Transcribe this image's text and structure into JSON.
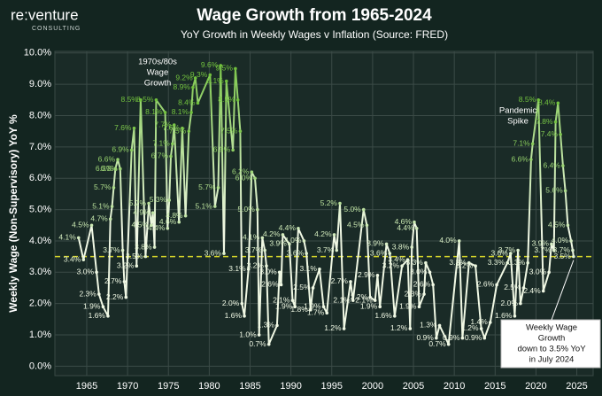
{
  "logo": {
    "name": "re:venture",
    "tagline": "CONSULTING"
  },
  "chart_data": {
    "type": "line",
    "title": "Wage Growth from 1965-2024",
    "subtitle": "YoY Growth in Weekly Wages v Inflation (Source: FRED)",
    "y_label": "Weekly Wage (Non-Supervisory) YoY %",
    "annotations": [
      [
        "1970s/80s",
        "Wage",
        "Growth"
      ],
      [
        "Pandemic",
        "Spike"
      ],
      [
        "Weekly Wage",
        "Growth",
        "down to 3.5% YoY",
        "in July 2024"
      ]
    ],
    "reference_line": 3.5,
    "reference_color": "#d6d62a",
    "grid": true,
    "xlim": [
      1961.1,
      2027
    ],
    "xticks": [
      1965,
      1970,
      1975,
      1980,
      1985,
      1990,
      1995,
      2000,
      2005,
      2010,
      2015,
      2020,
      2025
    ],
    "ylim": [
      -0.3,
      10.05
    ],
    "yticks": [
      {
        "value": 0,
        "label": "0.0%"
      },
      {
        "value": 1,
        "label": "1.0%"
      },
      {
        "value": 2,
        "label": "2.0%"
      },
      {
        "value": 3,
        "label": "3.0%"
      },
      {
        "value": 4,
        "label": "4.0%"
      },
      {
        "value": 5,
        "label": "5.0%"
      },
      {
        "value": 6,
        "label": "6.0%"
      },
      {
        "value": 7,
        "label": "7.0%"
      },
      {
        "value": 8,
        "label": "8.0%"
      },
      {
        "value": 9,
        "label": "9.0%"
      },
      {
        "value": 10,
        "label": "10.0%"
      }
    ],
    "color_low": "#f0f8e4",
    "color_high": "#72c23e",
    "x": [
      1964.0,
      1964.6,
      1965.6,
      1966.2,
      1966.5,
      1967.0,
      1967.6,
      1967.9,
      1968.1,
      1968.3,
      1968.5,
      1968.8,
      1969.1,
      1969.4,
      1969.6,
      1969.8,
      1970.5,
      1970.8,
      1971.1,
      1971.6,
      1972.2,
      1972.6,
      1972.9,
      1973.1,
      1973.3,
      1973.5,
      1974.6,
      1974.9,
      1975.1,
      1975.3,
      1975.5,
      1975.7,
      1976.3,
      1976.7,
      1977.1,
      1977.5,
      1977.8,
      1978.0,
      1978.3,
      1978.6,
      1980.1,
      1980.7,
      1981.1,
      1981.4,
      1981.8,
      1982.1,
      1982.9,
      1983.2,
      1983.5,
      1983.8,
      1984.0,
      1984.3,
      1984.8,
      1985.2,
      1985.6,
      1985.9,
      1986.1,
      1986.5,
      1986.8,
      1987.0,
      1987.3,
      1988.3,
      1988.6,
      1988.8,
      1989.0,
      1989.8,
      1990.2,
      1990.5,
      1990.9,
      1991.6,
      1991.9,
      1992.4,
      1992.7,
      1993.5,
      1994.0,
      1994.4,
      1995.3,
      1995.6,
      1996.0,
      1996.5,
      1997.3,
      1997.6,
      1998.9,
      1999.3,
      1999.7,
      2000.3,
      2000.6,
      2000.9,
      2001.7,
      2002.1,
      2002.7,
      2003.6,
      2004.3,
      2004.6,
      2004.8,
      2005.1,
      2005.4,
      2005.7,
      2006.3,
      2006.5,
      2007.0,
      2007.4,
      2007.8,
      2008.2,
      2009.3,
      2010.6,
      2011.0,
      2011.8,
      2012.6,
      2013.3,
      2013.7,
      2014.4,
      2015.2,
      2016.5,
      2016.9,
      2017.4,
      2017.8,
      2018.1,
      2018.5,
      2019.0,
      2019.4,
      2019.6,
      2020.3,
      2020.9,
      2021.6,
      2021.9,
      2022.2,
      2022.4,
      2022.7,
      2023.0,
      2023.3,
      2023.6,
      2023.9,
      2024.3,
      2024.5,
      2024.6
    ],
    "values": [
      4.1,
      3.4,
      4.5,
      3.0,
      2.3,
      1.9,
      1.6,
      4.7,
      5.1,
      5.7,
      6.3,
      6.6,
      6.3,
      3.7,
      2.7,
      2.2,
      6.9,
      7.6,
      3.2,
      8.5,
      3.5,
      5.2,
      4.5,
      4.9,
      3.8,
      8.5,
      8.1,
      4.4,
      5.3,
      6.7,
      7.1,
      7.7,
      4.6,
      7.6,
      4.8,
      7.5,
      8.1,
      8.9,
      9.2,
      8.4,
      9.3,
      5.1,
      5.7,
      9.6,
      3.6,
      9.1,
      6.9,
      9.5,
      8.5,
      7.5,
      2.0,
      1.6,
      3.1,
      6.2,
      6.0,
      5.0,
      1.0,
      4.1,
      3.7,
      3.2,
      0.7,
      1.3,
      3.0,
      2.6,
      4.2,
      3.9,
      2.1,
      1.9,
      4.4,
      4.0,
      3.6,
      1.8,
      2.5,
      3.1,
      1.9,
      1.7,
      4.2,
      3.7,
      5.2,
      1.2,
      2.7,
      2.1,
      5.0,
      4.5,
      2.2,
      2.1,
      2.9,
      1.9,
      3.9,
      3.6,
      1.6,
      3.2,
      3.4,
      1.2,
      3.8,
      4.6,
      4.4,
      1.9,
      2.3,
      3.3,
      3.0,
      2.6,
      0.9,
      1.3,
      0.7,
      4.0,
      0.9,
      3.3,
      3.2,
      1.2,
      0.9,
      1.4,
      2.6,
      3.3,
      3.6,
      1.6,
      3.7,
      2.0,
      2.5,
      3.3,
      6.6,
      7.1,
      8.5,
      2.4,
      3.0,
      3.9,
      3.7,
      7.8,
      8.4,
      7.4,
      6.4,
      5.6,
      4.5,
      4.0,
      3.7,
      3.5
    ],
    "value_labels": [
      "4.1%",
      "3.4%",
      "4.5%",
      "3.0%",
      "2.3%",
      "1.9%",
      "1.6%",
      "4.7%",
      "5.1%",
      "5.7%",
      "6.3%",
      "6.6%",
      "6.3%",
      "3.7%",
      "2.7%",
      "2.2%",
      "6.9%",
      "7.6%",
      "3.2%",
      "8.5%",
      "3.5%",
      "5.2%",
      "4.5%",
      "4.9%",
      "3.8%",
      "8.5%",
      "8.1%",
      "4.4%",
      "5.3%",
      "6.7%",
      "7.1%",
      "7.7%",
      "4.6%",
      "7.6%",
      "4.8%",
      "7.5%",
      "8.1%",
      "8.9%",
      "9.2%",
      "8.4%",
      "9.3%",
      "5.1%",
      "5.7%",
      "9.6%",
      "3.6%",
      "9.1%",
      "6.9%",
      "9.5%",
      "8.5%",
      "7.5%",
      "2.0%",
      "1.6%",
      "3.1%",
      "6.2%",
      "6.0%",
      "5.0%",
      "1.0%",
      "4.1%",
      "3.7%",
      "3.2%",
      "0.7%",
      "1.3%",
      "3.0%",
      "2.6%",
      "4.2%",
      "3.9%",
      "2.1%",
      "1.9%",
      "4.4%",
      "4.0%",
      "3.6%",
      "1.8%",
      "2.5%",
      "3.1%",
      "1.9%",
      "1.7%",
      "4.2%",
      "3.7%",
      "5.2%",
      "1.2%",
      "2.7%",
      "2.1%",
      "5.0%",
      "4.5%",
      "2.2%",
      "2.1%",
      "2.9%",
      "1.9%",
      "3.9%",
      "3.6%",
      "1.6%",
      "3.2%",
      "3.4%",
      "1.2%",
      "3.8%",
      "4.6%",
      "4.4%",
      "1.9%",
      "2.3%",
      "3.3%",
      "3.0%",
      "2.6%",
      "0.9%",
      "1.3%",
      "0.7%",
      "4.0%",
      "0.9%",
      "3.3%",
      "3.2%",
      "1.2%",
      "0.9%",
      "1.4%",
      "2.6%",
      "3.3%",
      "3.6%",
      "1.6%",
      "3.7%",
      "2.0%",
      "2.5%",
      "3.3%",
      "6.6%",
      "7.1%",
      "8.5%",
      "2.4%",
      "3.0%",
      "3.9%",
      "3.7%",
      "7.8%",
      "8.4%",
      "7.4%",
      "6.4%",
      "5.6%",
      "4.5%",
      "4.0%",
      "3.7%",
      "3.5%"
    ]
  }
}
